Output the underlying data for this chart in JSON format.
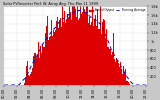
{
  "title": "Solar PV/Inverter Perf. W. Array Avg. Thu Mar 11 1999",
  "legend_actual": "Actual Output",
  "legend_avg": "Running Average",
  "bg_color": "#c8c8c8",
  "plot_bg_color": "#ffffff",
  "bar_color": "#dd0000",
  "avg_color": "#0000cc",
  "grid_color": "#aaaaaa",
  "text_color": "#000000",
  "title_color": "#000000",
  "ylim": [
    0,
    1800
  ],
  "ytick_labels": [
    "200",
    "400",
    "600",
    "800",
    "1k",
    "1.2k",
    "1.4k",
    "1.6k",
    "1.8k"
  ],
  "ytick_vals": [
    200,
    400,
    600,
    800,
    1000,
    1200,
    1400,
    1600,
    1800
  ],
  "n_bars": 288
}
